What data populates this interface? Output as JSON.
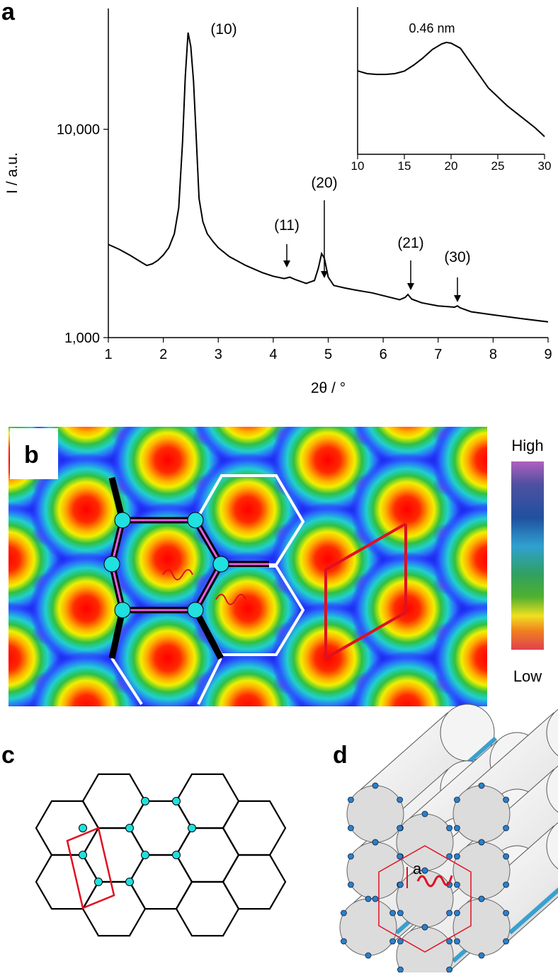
{
  "chart_data": [
    {
      "type": "line",
      "xlabel": "2θ / °",
      "ylabel": "I / a.u.",
      "xlim": [
        1,
        9
      ],
      "xticks": [
        1,
        2,
        3,
        4,
        5,
        6,
        7,
        8,
        9
      ],
      "ylim": [
        1000,
        38000
      ],
      "yscale": "log",
      "yticks": [
        {
          "value": 1000,
          "label": "1,000"
        },
        {
          "value": 10000,
          "label": "10,000"
        }
      ],
      "series": [
        {
          "color": "#000000",
          "x": [
            1.0,
            1.2,
            1.4,
            1.6,
            1.7,
            1.8,
            1.9,
            2.0,
            2.1,
            2.2,
            2.28,
            2.35,
            2.4,
            2.45,
            2.5,
            2.55,
            2.6,
            2.65,
            2.72,
            2.8,
            2.9,
            3.0,
            3.2,
            3.5,
            3.8,
            4.0,
            4.2,
            4.3,
            4.4,
            4.6,
            4.75,
            4.82,
            4.88,
            4.93,
            5.0,
            5.1,
            5.3,
            5.5,
            5.8,
            6.0,
            6.3,
            6.4,
            6.45,
            6.52,
            6.7,
            7.0,
            7.3,
            7.35,
            7.4,
            7.6,
            8.0,
            8.5,
            9.0
          ],
          "values": [
            2800,
            2650,
            2480,
            2300,
            2220,
            2260,
            2350,
            2490,
            2700,
            3150,
            4200,
            8700,
            18000,
            29100,
            25000,
            17000,
            9000,
            4650,
            3600,
            3150,
            2900,
            2700,
            2450,
            2220,
            2050,
            1970,
            1920,
            1950,
            1900,
            1820,
            1880,
            2150,
            2530,
            2400,
            1950,
            1780,
            1730,
            1690,
            1640,
            1590,
            1520,
            1560,
            1610,
            1530,
            1470,
            1420,
            1400,
            1420,
            1390,
            1330,
            1285,
            1235,
            1190
          ]
        }
      ],
      "annotations": [
        "(10)",
        "(11)",
        "(20)",
        "(21)",
        "(30)"
      ]
    },
    {
      "type": "line",
      "xlim": [
        10,
        30
      ],
      "xticks": [
        10,
        15,
        20,
        25,
        30
      ],
      "ylim": [
        0,
        100
      ],
      "series": [
        {
          "color": "#000000",
          "x": [
            10,
            11,
            12,
            13,
            14,
            15,
            16,
            17,
            18,
            19,
            19.5,
            20,
            21,
            22,
            23,
            24,
            25,
            26,
            27,
            28,
            29,
            30
          ],
          "values": [
            56.7,
            54.8,
            54.3,
            54.3,
            54.8,
            56.5,
            60.6,
            65.5,
            71.2,
            75,
            76,
            75.5,
            72,
            63,
            54,
            45,
            39,
            33,
            28,
            23,
            18,
            12
          ]
        }
      ],
      "annotations": [
        "0.46 nm"
      ]
    }
  ],
  "panel_labels": [
    "a",
    "b",
    "c",
    "d"
  ],
  "colorbar": {
    "high": "High",
    "low": "Low"
  },
  "structure_label": "a"
}
